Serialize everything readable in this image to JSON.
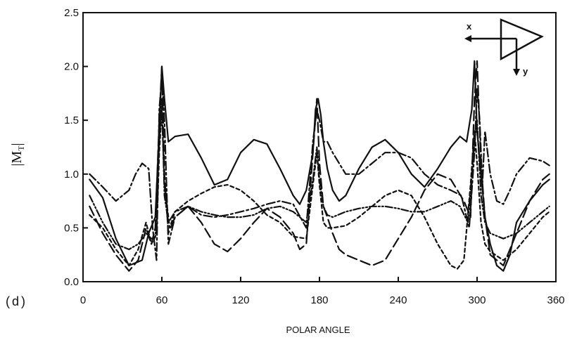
{
  "chart_data": {
    "type": "line",
    "panel_label": "(d)",
    "xlabel": "POLAR ANGLE",
    "ylabel_main": "|M",
    "ylabel_sub": "T",
    "ylabel_close": "|",
    "xlim": [
      0,
      360
    ],
    "ylim": [
      0,
      2.5
    ],
    "xticks": [
      0,
      60,
      120,
      180,
      240,
      300,
      360
    ],
    "yticks": [
      0.0,
      0.5,
      1.0,
      1.5,
      2.0,
      2.5
    ],
    "ytick_labels": [
      "0.0",
      "0.5",
      "1.0",
      "1.5",
      "2.0",
      "2.5"
    ],
    "grid": false,
    "inset": {
      "x_label": "x",
      "y_label": "y"
    },
    "series": [
      {
        "dash": "solid",
        "x": [
          5,
          15,
          25,
          35,
          45,
          50,
          55,
          58,
          60,
          62,
          65,
          70,
          80,
          90,
          100,
          110,
          120,
          130,
          140,
          150,
          160,
          165,
          170,
          175,
          177,
          179,
          181,
          183,
          186,
          190,
          195,
          200,
          210,
          220,
          230,
          240,
          250,
          260,
          270,
          280,
          287,
          292,
          296,
          298,
          300,
          303,
          306,
          310,
          315,
          320,
          325,
          330,
          340,
          350,
          355
        ],
        "y": [
          0.95,
          0.78,
          0.4,
          0.15,
          0.2,
          0.45,
          0.6,
          1.4,
          2.0,
          1.7,
          1.3,
          1.35,
          1.37,
          1.15,
          0.9,
          0.95,
          1.2,
          1.32,
          1.28,
          1.05,
          0.8,
          0.72,
          0.85,
          1.2,
          1.6,
          1.7,
          1.55,
          1.3,
          1.05,
          0.85,
          0.75,
          0.8,
          1.05,
          1.25,
          1.32,
          1.2,
          1.0,
          0.88,
          1.05,
          1.25,
          1.35,
          1.3,
          1.6,
          2.05,
          1.4,
          1.0,
          0.6,
          0.35,
          0.15,
          0.1,
          0.25,
          0.55,
          0.75,
          0.9,
          0.95
        ]
      },
      {
        "dash": "long-dash",
        "x": [
          5,
          15,
          25,
          35,
          42,
          48,
          52,
          55,
          58,
          60,
          62,
          65,
          70,
          80,
          90,
          100,
          110,
          120,
          130,
          140,
          150,
          160,
          165,
          170,
          175,
          178,
          180,
          183,
          186,
          190,
          195,
          200,
          210,
          220,
          230,
          240,
          250,
          260,
          270,
          280,
          290,
          295,
          298,
          300,
          303,
          306,
          310,
          320,
          330,
          340,
          350,
          355
        ],
        "y": [
          0.7,
          0.45,
          0.25,
          0.1,
          0.2,
          0.5,
          0.35,
          0.5,
          1.5,
          2.0,
          1.0,
          0.45,
          0.6,
          0.7,
          0.55,
          0.35,
          0.28,
          0.4,
          0.55,
          0.68,
          0.6,
          0.45,
          0.3,
          0.35,
          1.2,
          1.7,
          1.1,
          0.7,
          0.6,
          0.45,
          0.3,
          0.25,
          0.2,
          0.15,
          0.2,
          0.4,
          0.6,
          0.85,
          1.0,
          0.95,
          0.75,
          0.6,
          1.7,
          2.05,
          1.1,
          0.6,
          0.25,
          0.15,
          0.45,
          0.75,
          0.95,
          1.0
        ]
      },
      {
        "dash": "dash-dot",
        "x": [
          5,
          15,
          25,
          35,
          40,
          45,
          50,
          53,
          56,
          58,
          60,
          62,
          65,
          70,
          80,
          90,
          100,
          110,
          120,
          130,
          140,
          150,
          160,
          170,
          175,
          178,
          180,
          183,
          186,
          190,
          195,
          200,
          210,
          220,
          230,
          240,
          250,
          260,
          270,
          280,
          288,
          294,
          298,
          300,
          302,
          304,
          306,
          310,
          315,
          320,
          325,
          330,
          340,
          350,
          355
        ],
        "y": [
          1.0,
          0.88,
          0.75,
          0.85,
          1.0,
          1.1,
          1.05,
          0.5,
          0.2,
          1.6,
          1.9,
          1.5,
          0.35,
          0.6,
          0.7,
          0.62,
          0.6,
          0.62,
          0.65,
          0.68,
          0.72,
          0.75,
          0.72,
          0.5,
          1.3,
          1.6,
          1.5,
          1.3,
          1.3,
          1.2,
          1.1,
          1.0,
          1.0,
          1.1,
          1.2,
          1.2,
          1.15,
          1.0,
          0.9,
          0.85,
          0.8,
          0.5,
          1.2,
          1.8,
          1.5,
          0.9,
          1.4,
          1.0,
          0.75,
          0.72,
          0.85,
          1.0,
          1.15,
          1.12,
          1.08
        ]
      },
      {
        "dash": "short-dash",
        "x": [
          5,
          15,
          25,
          35,
          42,
          48,
          52,
          56,
          58,
          60,
          62,
          66,
          70,
          80,
          90,
          100,
          110,
          120,
          130,
          140,
          150,
          160,
          170,
          175,
          178,
          180,
          183,
          186,
          190,
          200,
          210,
          220,
          230,
          240,
          250,
          260,
          270,
          280,
          285,
          290,
          295,
          298,
          300,
          303,
          306,
          310,
          320,
          330,
          340,
          350,
          355
        ],
        "y": [
          0.62,
          0.5,
          0.3,
          0.15,
          0.3,
          0.55,
          0.35,
          0.45,
          1.2,
          1.6,
          0.9,
          0.5,
          0.65,
          0.75,
          0.82,
          0.88,
          0.9,
          0.85,
          0.75,
          0.62,
          0.55,
          0.42,
          0.4,
          0.9,
          1.2,
          0.9,
          0.55,
          0.5,
          0.5,
          0.52,
          0.6,
          0.7,
          0.8,
          0.85,
          0.8,
          0.6,
          0.35,
          0.15,
          0.12,
          0.2,
          0.9,
          1.4,
          1.1,
          0.55,
          0.35,
          0.28,
          0.2,
          0.3,
          0.45,
          0.6,
          0.65
        ]
      },
      {
        "dash": "dash-dot-dot",
        "x": [
          5,
          15,
          25,
          35,
          42,
          48,
          52,
          55,
          58,
          60,
          62,
          65,
          70,
          80,
          90,
          100,
          110,
          120,
          130,
          140,
          150,
          160,
          170,
          175,
          178,
          180,
          183,
          186,
          190,
          200,
          210,
          220,
          230,
          240,
          250,
          260,
          270,
          280,
          287,
          293,
          298,
          300,
          303,
          306,
          310,
          320,
          330,
          340,
          350,
          355
        ],
        "y": [
          0.8,
          0.55,
          0.35,
          0.3,
          0.35,
          0.45,
          0.4,
          0.4,
          1.3,
          1.7,
          0.8,
          0.55,
          0.65,
          0.7,
          0.65,
          0.62,
          0.6,
          0.6,
          0.62,
          0.68,
          0.7,
          0.65,
          0.55,
          0.95,
          1.25,
          0.95,
          0.7,
          0.62,
          0.6,
          0.65,
          0.68,
          0.7,
          0.7,
          0.68,
          0.65,
          0.65,
          0.7,
          0.75,
          0.7,
          0.55,
          1.3,
          1.5,
          0.8,
          0.55,
          0.45,
          0.4,
          0.45,
          0.55,
          0.65,
          0.7
        ]
      }
    ]
  }
}
